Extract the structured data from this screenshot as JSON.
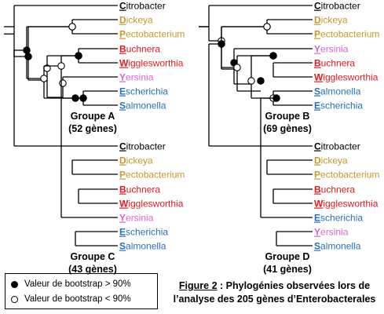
{
  "colors": {
    "Citrobacter": "#000000",
    "Dickeya": "#c8982e",
    "Pectobacterium": "#c8982e",
    "Buchnera": "#e0191e",
    "Wigglesworthia": "#e0191e",
    "Yersinia": "#d964d2",
    "Escherichia": "#2a6fb7",
    "Salmonella": "#2a6fb7"
  },
  "groups": [
    {
      "id": "A",
      "title": "Groupe A",
      "subtitle": "(52 gènes)",
      "taxa": [
        "Citrobacter",
        "Dickeya",
        "Pectobacterium",
        "Buchnera",
        "Wigglesworthia",
        "Yersinia",
        "Escherichia",
        "Salmonella"
      ],
      "support": [
        {
          "node": "root",
          "bootstrap": "<90%"
        },
        {
          "node": "(B,W,Y,E,S)",
          "bootstrap": ">90%"
        },
        {
          "node": "(D,P)",
          "bootstrap": "<90%"
        },
        {
          "node": "(B,W,Y,E,S) inner",
          "bootstrap": "<90%"
        },
        {
          "node": "(B,W)",
          "bootstrap": "<90%"
        },
        {
          "node": "(Y,E,S)",
          "bootstrap": "<90%"
        },
        {
          "node": "(E,S)",
          "bootstrap": ">90%"
        }
      ]
    },
    {
      "id": "B",
      "title": "Groupe B",
      "subtitle": "(69 gènes)",
      "taxa": [
        "Citrobacter",
        "Dickeya",
        "Pectobacterium",
        "Yersinia",
        "Buchnera",
        "Wigglesworthia",
        "Salmonella",
        "Escherichia"
      ],
      "support": [
        {
          "node": "(D,P)",
          "bootstrap": ">90%"
        },
        {
          "node": "rest",
          "bootstrap": "<90%"
        },
        {
          "node": "(Y,B,W,S,E)",
          "bootstrap": ">90%"
        },
        {
          "node": "(B,W,S,E)",
          "bootstrap": "<90%"
        },
        {
          "node": "(B,W)",
          "bootstrap": ">90%"
        },
        {
          "node": "(S,E)",
          "bootstrap": "<90%"
        }
      ]
    },
    {
      "id": "C",
      "title": "Groupe C",
      "subtitle": "(43 gènes)",
      "taxa": [
        "Citrobacter",
        "Dickeya",
        "Pectobacterium",
        "Buchnera",
        "Wigglesworthia",
        "Yersinia",
        "Escherichia",
        "Salmonella"
      ],
      "support": [
        {
          "node": "(D,P)",
          "bootstrap": "<90%"
        },
        {
          "node": "rest",
          "bootstrap": ">90%"
        },
        {
          "node": "(B,W,Y,E,S)",
          "bootstrap": "<90%"
        },
        {
          "node": "(B,W,Y)",
          "bootstrap": "<90%"
        },
        {
          "node": "(B,W)",
          "bootstrap": ">90%"
        },
        {
          "node": "(E,S)",
          "bootstrap": ">90%"
        }
      ]
    },
    {
      "id": "D",
      "title": "Groupe D",
      "subtitle": "(41 gènes)",
      "taxa": [
        "Citrobacter",
        "Dickeya",
        "Pectobacterium",
        "Buchnera",
        "Wigglesworthia",
        "Escherichia",
        "Yersinia",
        "Salmonella"
      ],
      "support": [
        {
          "node": "(D,P)",
          "bootstrap": "<90%"
        },
        {
          "node": "rest",
          "bootstrap": ">90%"
        },
        {
          "node": "(B,W)",
          "bootstrap": ">90%"
        },
        {
          "node": "(E,Y,S)",
          "bootstrap": "<90%"
        },
        {
          "node": "(Y,S)",
          "bootstrap": ">90%"
        },
        {
          "node": "(E,Y,S) inner",
          "bootstrap": ">90%"
        }
      ]
    }
  ],
  "legend": {
    "high": "Valeur de bootstrap > 90%",
    "low": "Valeur de bootstrap < 90%"
  },
  "caption": {
    "figure": "Figure 2",
    "line1": " : Phylogénies observées lors de",
    "line2": "l’analyse des 205 gènes d’Enterobacterales"
  }
}
